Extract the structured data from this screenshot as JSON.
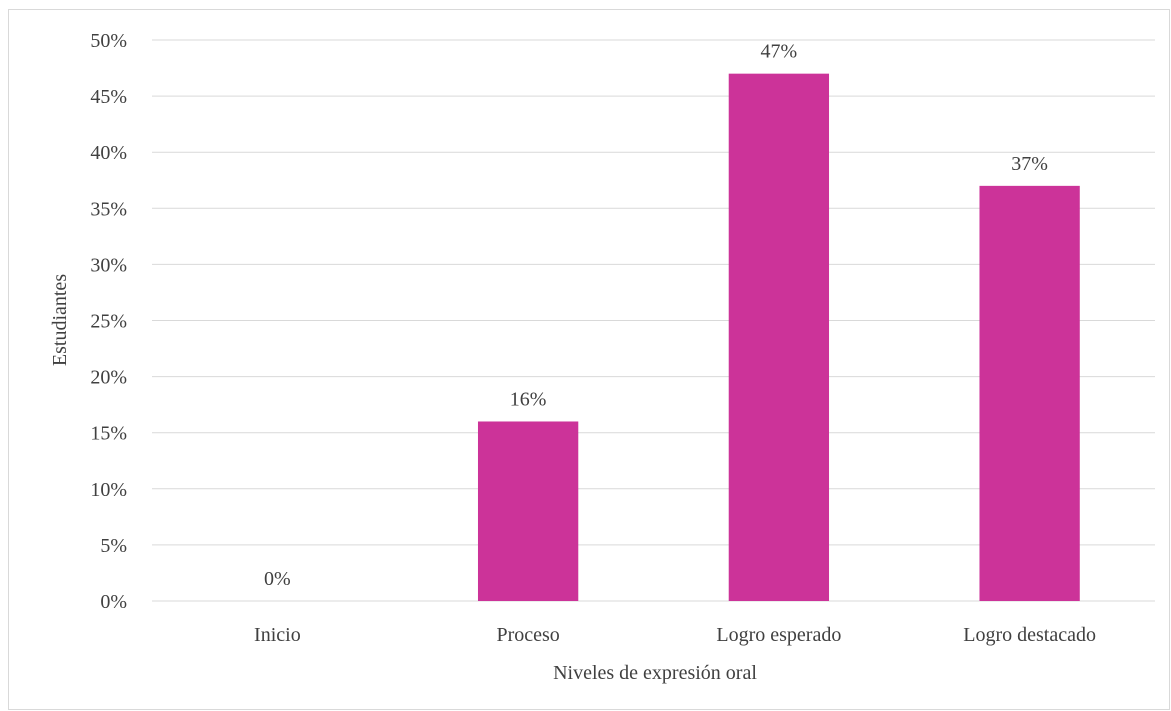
{
  "chart_data": {
    "type": "bar",
    "title": "",
    "xlabel": "Niveles de expresión oral",
    "ylabel": "Estudiantes",
    "categories": [
      "Inicio",
      "Proceso",
      "Logro esperado",
      "Logro destacado"
    ],
    "values": [
      0,
      16,
      47,
      37
    ],
    "data_labels": [
      "0%",
      "16%",
      "47%",
      "37%"
    ],
    "ylim": [
      0,
      50
    ],
    "y_ticks": [
      0,
      5,
      10,
      15,
      20,
      25,
      30,
      35,
      40,
      45,
      50
    ],
    "y_tick_labels": [
      "0%",
      "5%",
      "10%",
      "15%",
      "20%",
      "25%",
      "30%",
      "35%",
      "40%",
      "45%",
      "50%"
    ],
    "grid": true,
    "legend": "none",
    "bar_color": "#cc3399"
  }
}
